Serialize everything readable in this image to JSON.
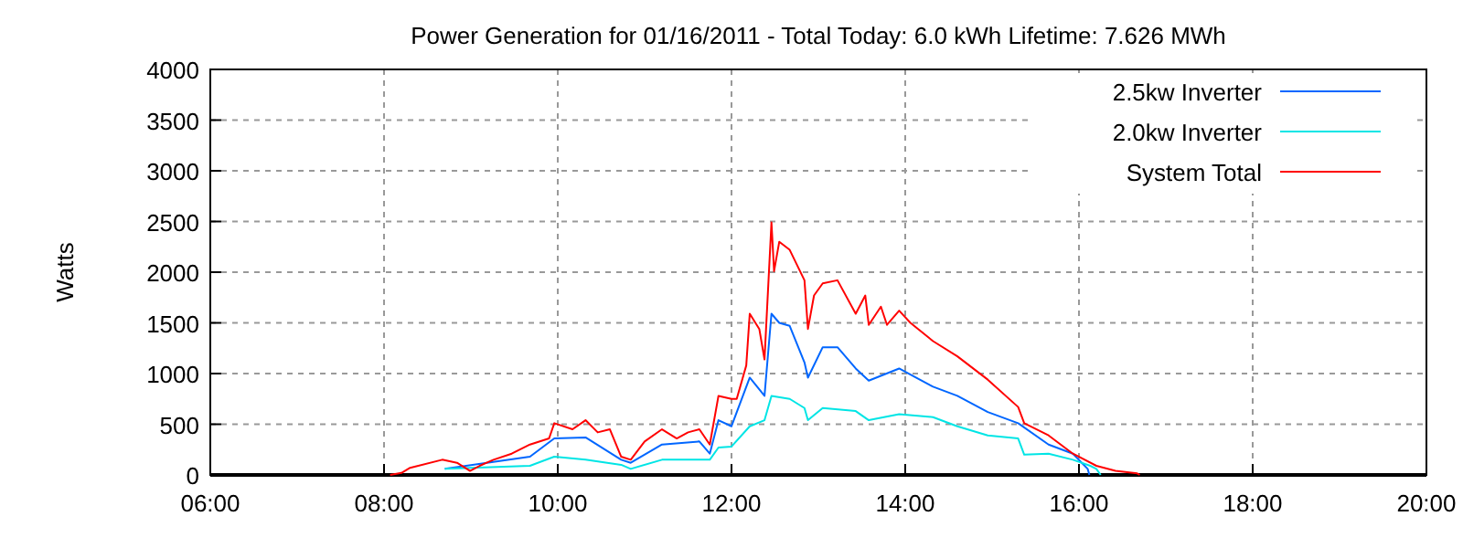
{
  "chart_data": {
    "type": "line",
    "title": "Power Generation for 01/16/2011 - Total Today: 6.0 kWh   Lifetime: 7.626 MWh",
    "ylabel": "Watts",
    "xlim": [
      6,
      20
    ],
    "xticks": [
      {
        "value": 6,
        "label": "06:00"
      },
      {
        "value": 8,
        "label": "08:00"
      },
      {
        "value": 10,
        "label": "10:00"
      },
      {
        "value": 12,
        "label": "12:00"
      },
      {
        "value": 14,
        "label": "14:00"
      },
      {
        "value": 16,
        "label": "16:00"
      },
      {
        "value": 18,
        "label": "18:00"
      },
      {
        "value": 20,
        "label": "20:00"
      }
    ],
    "ylim": [
      0,
      4000
    ],
    "yticks": [
      0,
      500,
      1000,
      1500,
      2000,
      2500,
      3000,
      3500,
      4000
    ],
    "grid": true,
    "legend": "top right",
    "line_style": "solid",
    "series": [
      {
        "name": "2.5kw Inverter",
        "color": "#0066ff",
        "x": [
          8.7,
          9.68,
          9.96,
          10.32,
          10.73,
          10.84,
          11.2,
          11.63,
          11.75,
          11.85,
          12.0,
          12.21,
          12.38,
          12.46,
          12.55,
          12.67,
          12.84,
          12.88,
          13.05,
          13.22,
          13.43,
          13.58,
          13.93,
          14.06,
          14.32,
          14.6,
          14.95,
          15.3,
          15.65,
          15.93,
          16.1,
          16.12
        ],
        "values": [
          60,
          180,
          360,
          370,
          150,
          120,
          300,
          330,
          210,
          540,
          480,
          960,
          780,
          1590,
          1500,
          1470,
          1110,
          960,
          1260,
          1260,
          1050,
          930,
          1050,
          990,
          870,
          780,
          620,
          510,
          300,
          210,
          60,
          0
        ]
      },
      {
        "name": "2.0kw Inverter",
        "color": "#00e5e5",
        "x": [
          8.7,
          9.68,
          9.96,
          10.32,
          10.73,
          10.84,
          11.2,
          11.63,
          11.75,
          11.85,
          12.0,
          12.21,
          12.38,
          12.46,
          12.67,
          12.84,
          12.88,
          13.05,
          13.43,
          13.58,
          13.93,
          14.32,
          14.6,
          14.95,
          15.3,
          15.37,
          15.65,
          15.93,
          16.13,
          16.2,
          16.25
        ],
        "values": [
          60,
          90,
          180,
          150,
          100,
          60,
          150,
          150,
          150,
          270,
          280,
          480,
          540,
          780,
          750,
          660,
          540,
          660,
          630,
          540,
          600,
          570,
          480,
          390,
          360,
          200,
          210,
          150,
          90,
          60,
          0
        ]
      },
      {
        "name": "System Total",
        "color": "#ff0000",
        "x": [
          8.07,
          8.2,
          8.3,
          8.67,
          8.84,
          8.99,
          9.1,
          9.26,
          9.47,
          9.68,
          9.9,
          9.96,
          10.17,
          10.32,
          10.46,
          10.6,
          10.73,
          10.84,
          11.0,
          11.2,
          11.37,
          11.5,
          11.63,
          11.75,
          11.85,
          12.0,
          12.06,
          12.17,
          12.21,
          12.32,
          12.38,
          12.46,
          12.49,
          12.55,
          12.67,
          12.84,
          12.88,
          12.95,
          13.05,
          13.22,
          13.43,
          13.54,
          13.58,
          13.72,
          13.79,
          13.93,
          14.06,
          14.32,
          14.6,
          14.95,
          15.3,
          15.37,
          15.65,
          15.93,
          16.2,
          16.42,
          16.67,
          16.7
        ],
        "values": [
          0,
          20,
          70,
          150,
          120,
          40,
          90,
          150,
          210,
          300,
          360,
          510,
          450,
          540,
          420,
          450,
          180,
          150,
          330,
          450,
          360,
          420,
          450,
          300,
          780,
          750,
          750,
          1080,
          1590,
          1440,
          1140,
          2490,
          2010,
          2300,
          2220,
          1920,
          1440,
          1770,
          1890,
          1920,
          1590,
          1770,
          1480,
          1660,
          1480,
          1620,
          1500,
          1320,
          1170,
          940,
          670,
          510,
          390,
          210,
          90,
          40,
          15,
          0
        ]
      }
    ]
  }
}
